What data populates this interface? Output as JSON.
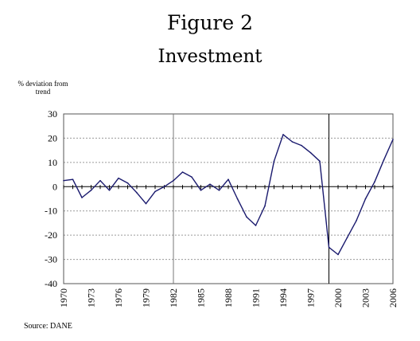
{
  "figure_label": "Figure 2",
  "chart_data": {
    "type": "line",
    "title": "Investment",
    "ylabel": "% deviation from trend",
    "xlabel": "",
    "source": "Source: DANE",
    "ylim": [
      -40,
      30
    ],
    "yticks": [
      -40,
      -30,
      -20,
      -10,
      0,
      10,
      20,
      30
    ],
    "xticks": [
      1970,
      1973,
      1976,
      1979,
      1982,
      1985,
      1988,
      1991,
      1994,
      1997,
      2000,
      2003,
      2006
    ],
    "xlim": [
      1970,
      2006
    ],
    "grid": true,
    "vertical_markers": [
      1982,
      1999
    ],
    "line_color": "#1a1a6e",
    "series": [
      {
        "x": [
          1970,
          1971,
          1972,
          1973,
          1974,
          1975,
          1976,
          1977,
          1978,
          1979,
          1980,
          1981,
          1982,
          1983,
          1984,
          1985,
          1986,
          1987,
          1988,
          1989,
          1990,
          1991,
          1992,
          1993,
          1994,
          1995,
          1996,
          1997,
          1998,
          1999,
          2000,
          2001,
          2002,
          2003,
          2004,
          2005,
          2006
        ],
        "values": [
          2.5,
          3,
          -4.5,
          -1.5,
          2.5,
          -1.5,
          3.5,
          1.5,
          -2.5,
          -7,
          -2,
          0,
          2.5,
          6,
          4,
          -1.5,
          1,
          -1.5,
          3,
          -5,
          -12.5,
          -16,
          -8,
          10.5,
          21.5,
          18.5,
          17,
          14,
          10.5,
          -25,
          -28,
          -21,
          -14,
          -5,
          2,
          11,
          19.5
        ]
      }
    ]
  }
}
